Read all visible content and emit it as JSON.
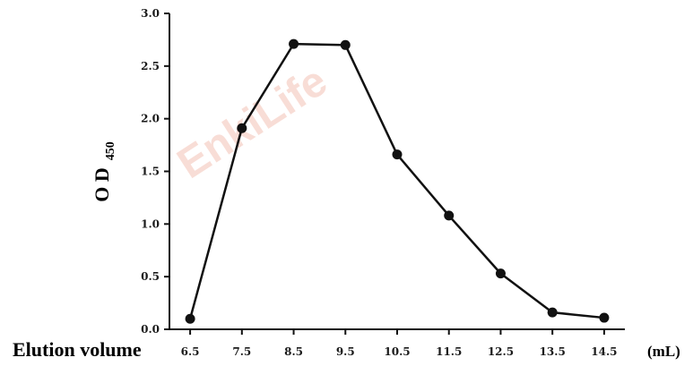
{
  "chart_data": {
    "type": "line",
    "x": [
      6.5,
      7.5,
      8.5,
      9.5,
      10.5,
      11.5,
      12.5,
      13.5,
      14.5
    ],
    "categories": [
      "6.5",
      "7.5",
      "8.5",
      "9.5",
      "10.5",
      "11.5",
      "12.5",
      "13.5",
      "14.5"
    ],
    "series": [
      {
        "values": [
          0.1,
          1.91,
          2.71,
          2.7,
          1.66,
          1.08,
          0.53,
          0.16,
          0.11
        ]
      }
    ],
    "xlabel": "Elution volume",
    "xunit": "(mL)",
    "ylabel_main": "O D",
    "ylabel_sub": "450",
    "ylim": [
      0.0,
      3.0
    ],
    "yticks": [
      "0.0",
      "0.5",
      "1.0",
      "1.5",
      "2.0",
      "2.5",
      "3.0"
    ],
    "watermark": "EnkiLife",
    "grid": false,
    "line_color": "#111111",
    "marker_color": "#111111"
  }
}
